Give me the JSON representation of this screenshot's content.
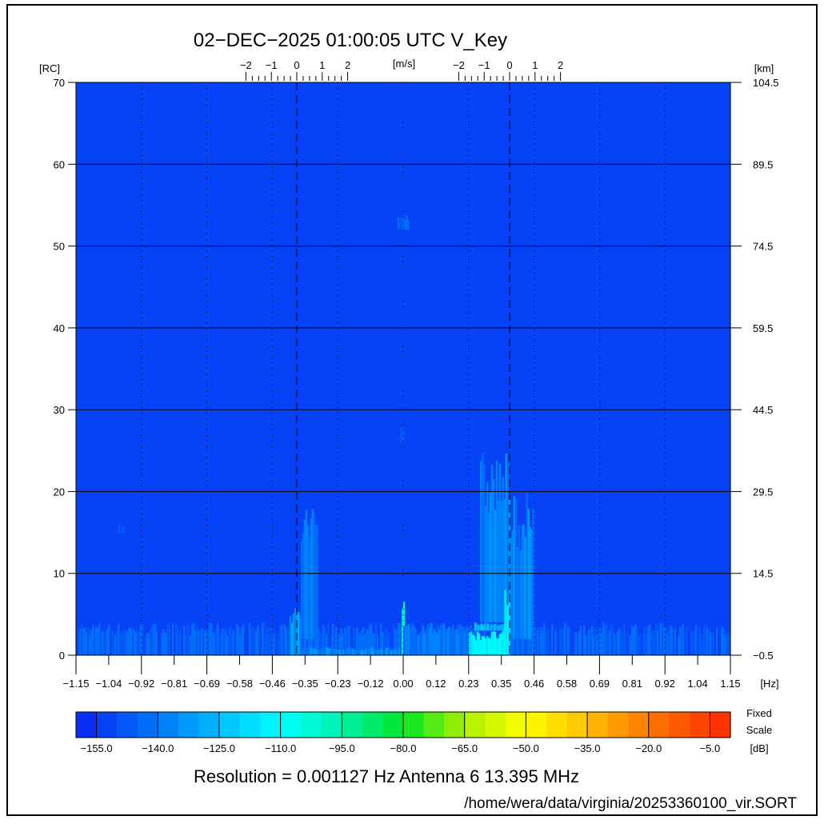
{
  "header": {
    "title": "02−DEC−2025 01:00:05 UTC   V_Key"
  },
  "footer": {
    "info": "Resolution = 0.001127 Hz   Antenna  6   13.395 MHz",
    "path": "/home/wera/data/virginia/20253360100_vir.SORT"
  },
  "chart_data": {
    "type": "heatmap",
    "xlabel": "[Hz]",
    "ylabel_left": "[RC]",
    "ylabel_right": "[km]",
    "velocity_label": "[m/s]",
    "xlim": [
      -1.15,
      1.15
    ],
    "ylim": [
      0,
      70
    ],
    "y_right_lim": [
      -0.5,
      104.5
    ],
    "x_ticks": [
      "-1.15",
      "-1.04",
      "-0.92",
      "-0.81",
      "-0.69",
      "-0.58",
      "-0.46",
      "-0.35",
      "-0.23",
      "-0.12",
      "0.00",
      "0.12",
      "0.23",
      "0.35",
      "0.46",
      "0.58",
      "0.69",
      "0.81",
      "0.92",
      "1.04",
      "1.15"
    ],
    "y_ticks": [
      "0",
      "10",
      "20",
      "30",
      "40",
      "50",
      "60",
      "70"
    ],
    "y_right_ticks": [
      "-0.5",
      "14.5",
      "29.5",
      "44.5",
      "59.5",
      "74.5",
      "89.5",
      "104.5"
    ],
    "bragg_lines_hz": [
      -0.374,
      0.374
    ],
    "velocity_ticks": [
      "-2",
      "-1",
      "0",
      "1",
      "2"
    ],
    "velocity_hz_per_ms": 0.0894,
    "grid": {
      "horizontal": "solid",
      "vertical": "dotted"
    },
    "background_db": -152,
    "features": [
      {
        "x": [
          -1.15,
          1.15
        ],
        "y": [
          0,
          4
        ],
        "db": -146
      },
      {
        "x": [
          -0.4,
          -0.36
        ],
        "y": [
          0,
          6
        ],
        "db": -132
      },
      {
        "x": [
          -0.36,
          -0.3
        ],
        "y": [
          2,
          19
        ],
        "db": -140
      },
      {
        "x": [
          -0.36,
          0.23
        ],
        "y": [
          0,
          1
        ],
        "db": -138
      },
      {
        "x": [
          -0.005,
          0.005
        ],
        "y": [
          0,
          7
        ],
        "db": -100
      },
      {
        "x": [
          0.0,
          0.23
        ],
        "y": [
          0,
          4
        ],
        "db": -140
      },
      {
        "x": [
          0.23,
          0.37
        ],
        "y": [
          0,
          3
        ],
        "db": -112
      },
      {
        "x": [
          0.25,
          0.37
        ],
        "y": [
          3,
          4
        ],
        "db": -128
      },
      {
        "x": [
          0.27,
          0.37
        ],
        "y": [
          4,
          25
        ],
        "db": -138
      },
      {
        "x": [
          0.37,
          0.46
        ],
        "y": [
          2,
          20
        ],
        "db": -136
      },
      {
        "x": [
          0.355,
          0.375
        ],
        "y": [
          0,
          8
        ],
        "db": -115
      },
      {
        "x": [
          -0.02,
          0.02
        ],
        "y": [
          52,
          54
        ],
        "db": -145
      },
      {
        "x": [
          -0.01,
          0.01
        ],
        "y": [
          26,
          28
        ],
        "db": -146
      },
      {
        "x": [
          -1.0,
          -0.98
        ],
        "y": [
          15,
          16
        ],
        "db": -146
      }
    ],
    "colorbar": {
      "range_db": [
        -160,
        0
      ],
      "step_db": 5,
      "tick_labels": [
        "-155.0",
        "-140.0",
        "-125.0",
        "-110.0",
        "-95.0",
        "-80.0",
        "-65.0",
        "-50.0",
        "-35.0",
        "-20.0",
        "-5.0"
      ],
      "label_line1": "Fixed",
      "label_line2": "Scale",
      "unit": "[dB]"
    }
  }
}
